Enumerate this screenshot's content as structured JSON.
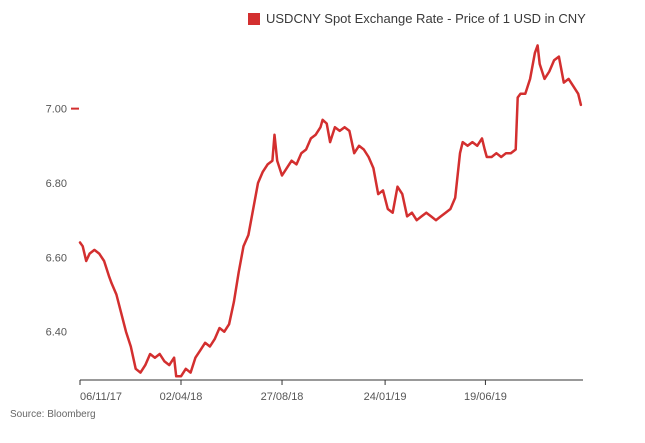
{
  "chart_data": {
    "type": "line",
    "series": [
      {
        "name": "USDCNY Spot Exchange Rate - Price of 1 USD in CNY",
        "color": "#d32f2f",
        "points": [
          [
            "2017-11-06",
            6.64
          ],
          [
            "2017-11-10",
            6.63
          ],
          [
            "2017-11-15",
            6.59
          ],
          [
            "2017-11-20",
            6.61
          ],
          [
            "2017-11-27",
            6.62
          ],
          [
            "2017-12-04",
            6.61
          ],
          [
            "2017-12-11",
            6.59
          ],
          [
            "2017-12-18",
            6.55
          ],
          [
            "2017-12-22",
            6.53
          ],
          [
            "2017-12-29",
            6.5
          ],
          [
            "2018-01-05",
            6.45
          ],
          [
            "2018-01-12",
            6.4
          ],
          [
            "2018-01-19",
            6.36
          ],
          [
            "2018-01-26",
            6.3
          ],
          [
            "2018-02-02",
            6.29
          ],
          [
            "2018-02-09",
            6.31
          ],
          [
            "2018-02-16",
            6.34
          ],
          [
            "2018-02-23",
            6.33
          ],
          [
            "2018-03-02",
            6.34
          ],
          [
            "2018-03-09",
            6.32
          ],
          [
            "2018-03-16",
            6.31
          ],
          [
            "2018-03-23",
            6.33
          ],
          [
            "2018-03-26",
            6.28
          ],
          [
            "2018-04-02",
            6.28
          ],
          [
            "2018-04-09",
            6.3
          ],
          [
            "2018-04-16",
            6.29
          ],
          [
            "2018-04-23",
            6.33
          ],
          [
            "2018-04-30",
            6.35
          ],
          [
            "2018-05-07",
            6.37
          ],
          [
            "2018-05-14",
            6.36
          ],
          [
            "2018-05-21",
            6.38
          ],
          [
            "2018-05-28",
            6.41
          ],
          [
            "2018-06-04",
            6.4
          ],
          [
            "2018-06-11",
            6.42
          ],
          [
            "2018-06-18",
            6.48
          ],
          [
            "2018-06-25",
            6.56
          ],
          [
            "2018-07-02",
            6.63
          ],
          [
            "2018-07-09",
            6.66
          ],
          [
            "2018-07-16",
            6.73
          ],
          [
            "2018-07-23",
            6.8
          ],
          [
            "2018-07-30",
            6.83
          ],
          [
            "2018-08-06",
            6.85
          ],
          [
            "2018-08-13",
            6.86
          ],
          [
            "2018-08-16",
            6.93
          ],
          [
            "2018-08-20",
            6.86
          ],
          [
            "2018-08-27",
            6.82
          ],
          [
            "2018-09-03",
            6.84
          ],
          [
            "2018-09-10",
            6.86
          ],
          [
            "2018-09-17",
            6.85
          ],
          [
            "2018-09-24",
            6.88
          ],
          [
            "2018-10-01",
            6.89
          ],
          [
            "2018-10-08",
            6.92
          ],
          [
            "2018-10-15",
            6.93
          ],
          [
            "2018-10-22",
            6.95
          ],
          [
            "2018-10-25",
            6.97
          ],
          [
            "2018-10-31",
            6.96
          ],
          [
            "2018-11-05",
            6.91
          ],
          [
            "2018-11-12",
            6.95
          ],
          [
            "2018-11-19",
            6.94
          ],
          [
            "2018-11-26",
            6.95
          ],
          [
            "2018-12-03",
            6.94
          ],
          [
            "2018-12-10",
            6.88
          ],
          [
            "2018-12-17",
            6.9
          ],
          [
            "2018-12-24",
            6.89
          ],
          [
            "2018-12-31",
            6.87
          ],
          [
            "2019-01-07",
            6.84
          ],
          [
            "2019-01-14",
            6.77
          ],
          [
            "2019-01-21",
            6.78
          ],
          [
            "2019-01-28",
            6.73
          ],
          [
            "2019-02-04",
            6.72
          ],
          [
            "2019-02-11",
            6.79
          ],
          [
            "2019-02-18",
            6.77
          ],
          [
            "2019-02-25",
            6.71
          ],
          [
            "2019-03-04",
            6.72
          ],
          [
            "2019-03-11",
            6.7
          ],
          [
            "2019-03-18",
            6.71
          ],
          [
            "2019-03-25",
            6.72
          ],
          [
            "2019-04-01",
            6.71
          ],
          [
            "2019-04-08",
            6.7
          ],
          [
            "2019-04-15",
            6.71
          ],
          [
            "2019-04-22",
            6.72
          ],
          [
            "2019-04-29",
            6.73
          ],
          [
            "2019-05-06",
            6.76
          ],
          [
            "2019-05-13",
            6.88
          ],
          [
            "2019-05-17",
            6.91
          ],
          [
            "2019-05-24",
            6.9
          ],
          [
            "2019-05-31",
            6.91
          ],
          [
            "2019-06-07",
            6.9
          ],
          [
            "2019-06-14",
            6.92
          ],
          [
            "2019-06-18",
            6.89
          ],
          [
            "2019-06-21",
            6.87
          ],
          [
            "2019-06-28",
            6.87
          ],
          [
            "2019-07-05",
            6.88
          ],
          [
            "2019-07-12",
            6.87
          ],
          [
            "2019-07-19",
            6.88
          ],
          [
            "2019-07-26",
            6.88
          ],
          [
            "2019-08-02",
            6.89
          ],
          [
            "2019-08-05",
            7.03
          ],
          [
            "2019-08-09",
            7.04
          ],
          [
            "2019-08-16",
            7.04
          ],
          [
            "2019-08-23",
            7.08
          ],
          [
            "2019-08-30",
            7.15
          ],
          [
            "2019-09-03",
            7.17
          ],
          [
            "2019-09-06",
            7.12
          ],
          [
            "2019-09-13",
            7.08
          ],
          [
            "2019-09-20",
            7.1
          ],
          [
            "2019-09-27",
            7.13
          ],
          [
            "2019-10-04",
            7.14
          ],
          [
            "2019-10-11",
            7.07
          ],
          [
            "2019-10-18",
            7.08
          ],
          [
            "2019-10-25",
            7.06
          ],
          [
            "2019-11-01",
            7.04
          ],
          [
            "2019-11-05",
            7.01
          ]
        ]
      }
    ],
    "x_axis": {
      "type": "date",
      "range": [
        "2017-11-06",
        "2019-11-08"
      ],
      "ticks": [
        {
          "date": "2017-11-06",
          "label": "06/11/17"
        },
        {
          "date": "2018-04-02",
          "label": "02/04/18"
        },
        {
          "date": "2018-08-27",
          "label": "27/08/18"
        },
        {
          "date": "2019-01-24",
          "label": "24/01/19"
        },
        {
          "date": "2019-06-19",
          "label": "19/06/19"
        }
      ]
    },
    "y_axis": {
      "range": [
        6.27,
        7.19
      ],
      "ticks": [
        {
          "value": 6.4,
          "label": "6.40"
        },
        {
          "value": 6.6,
          "label": "6.60"
        },
        {
          "value": 6.8,
          "label": "6.80"
        },
        {
          "value": 7.0,
          "label": "7.00"
        }
      ],
      "highlight_tick": 7.0,
      "highlight_color": "#d32f2f"
    },
    "grid": false,
    "legend_position": "top-right"
  },
  "legend": {
    "label": "USDCNY Spot Exchange Rate - Price of 1 USD in CNY",
    "color": "#d32f2f"
  },
  "source": "Source: Bloomberg"
}
